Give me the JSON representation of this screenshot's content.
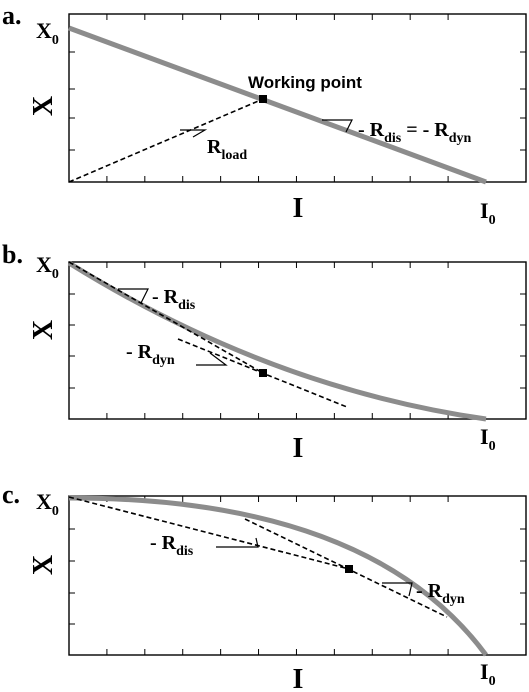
{
  "panels": [
    {
      "letter": "a.",
      "y_axis_title": "X",
      "x_axis_title": "I",
      "x_origin_label": {
        "main": "X",
        "sub": "0"
      },
      "i_end_label": {
        "main": "I",
        "sub": "0"
      },
      "working_point_label": "Working point",
      "load_label": {
        "main": "R",
        "sub": "load"
      },
      "slope_label": {
        "p1": "- R",
        "s1": "dis",
        "p2": " = - R",
        "s2": "dyn"
      }
    },
    {
      "letter": "b.",
      "y_axis_title": "X",
      "x_axis_title": "I",
      "x_origin_label": {
        "main": "X",
        "sub": "0"
      },
      "i_end_label": {
        "main": "I",
        "sub": "0"
      },
      "dis_label": {
        "main": "- R",
        "sub": "dis"
      },
      "dyn_label": {
        "main": "- R",
        "sub": "dyn"
      }
    },
    {
      "letter": "c.",
      "y_axis_title": "X",
      "x_axis_title": "I",
      "x_origin_label": {
        "main": "X",
        "sub": "0"
      },
      "i_end_label": {
        "main": "I",
        "sub": "0"
      },
      "dis_label": {
        "main": "- R",
        "sub": "dis"
      },
      "dyn_label": {
        "main": "- R",
        "sub": "dyn"
      }
    }
  ],
  "colors": {
    "curve": "#8c8c8c",
    "axes": "#000000",
    "dashed": "#000000",
    "marker": "#000000"
  }
}
